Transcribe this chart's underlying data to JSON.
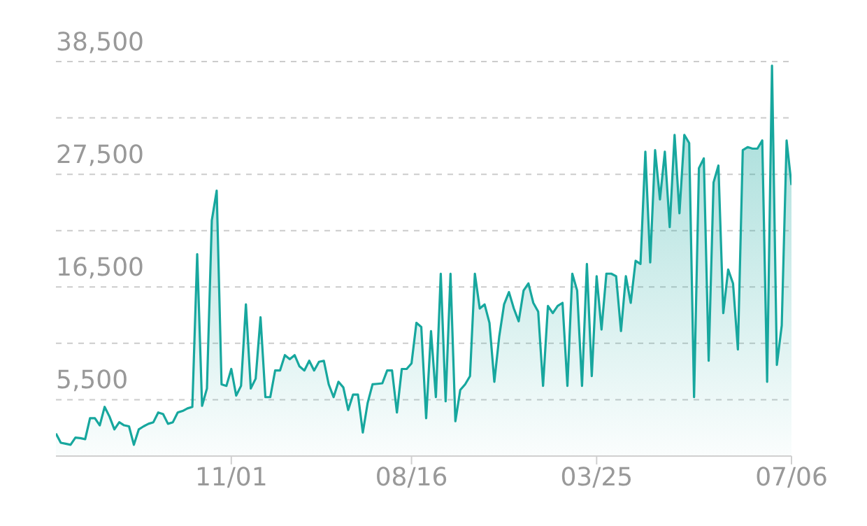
{
  "chart_data": {
    "type": "area",
    "categories": [
      null,
      null,
      null,
      null,
      null,
      null,
      null,
      null,
      null,
      null,
      null,
      null,
      null,
      null,
      null,
      null,
      null,
      null,
      null,
      null,
      null,
      null,
      null,
      null,
      null,
      null,
      null,
      null,
      null,
      null,
      null,
      null,
      null,
      null,
      null,
      null,
      "11/01",
      null,
      null,
      null,
      null,
      null,
      null,
      null,
      null,
      null,
      null,
      null,
      null,
      null,
      null,
      null,
      null,
      null,
      null,
      null,
      null,
      null,
      null,
      null,
      null,
      null,
      null,
      null,
      null,
      null,
      null,
      null,
      null,
      null,
      null,
      null,
      null,
      "08/16",
      null,
      null,
      null,
      null,
      null,
      null,
      null,
      null,
      null,
      null,
      null,
      null,
      null,
      null,
      null,
      null,
      null,
      null,
      null,
      null,
      null,
      null,
      null,
      null,
      null,
      null,
      null,
      null,
      null,
      null,
      null,
      null,
      null,
      null,
      null,
      null,
      null,
      "03/25",
      null,
      null,
      null,
      null,
      null,
      null,
      null,
      null,
      null,
      null,
      null,
      null,
      null,
      null,
      null,
      null,
      null,
      null,
      null,
      null,
      null,
      null,
      null,
      null,
      null,
      null,
      null,
      null,
      null,
      null,
      null,
      null,
      null,
      null,
      null,
      null,
      null,
      null,
      null,
      "07/06"
    ],
    "series": [
      {
        "color": "#17a79e",
        "values": [
          2200,
          1300,
          1200,
          1100,
          1800,
          1750,
          1650,
          3700,
          3700,
          3000,
          4800,
          3850,
          2600,
          3300,
          3000,
          2900,
          1100,
          2600,
          2900,
          3150,
          3300,
          4250,
          4100,
          3150,
          3300,
          4250,
          4400,
          4650,
          4800,
          19700,
          4900,
          6600,
          23000,
          25900,
          7000,
          6850,
          8500,
          5900,
          6850,
          14800,
          6600,
          7550,
          13550,
          5750,
          5750,
          8350,
          8350,
          9850,
          9450,
          9850,
          8750,
          8350,
          9300,
          8350,
          9200,
          9300,
          7000,
          5750,
          7250,
          6700,
          4500,
          6000,
          6000,
          2300,
          5200,
          7000,
          7050,
          7100,
          8350,
          8350,
          4250,
          8500,
          8500,
          9050,
          13000,
          12600,
          3700,
          12200,
          5750,
          17800,
          5350,
          17800,
          3400,
          6450,
          7000,
          7800,
          17800,
          14400,
          14800,
          13000,
          7250,
          11650,
          14800,
          16000,
          14400,
          13150,
          16150,
          16850,
          14950,
          14100,
          6850,
          14650,
          13950,
          14650,
          14950,
          6850,
          17800,
          16150,
          6850,
          18750,
          7800,
          17550,
          12350,
          17800,
          17800,
          17550,
          12200,
          17550,
          14950,
          19050,
          18750,
          29700,
          18900,
          29850,
          25050,
          29700,
          22350,
          31350,
          23700,
          31350,
          30550,
          5750,
          28100,
          29050,
          9300,
          26700,
          28350,
          13950,
          18200,
          16850,
          10400,
          29850,
          30150,
          30000,
          30000,
          30800,
          7250,
          38100,
          8900,
          12750,
          30800,
          26450
        ]
      }
    ],
    "ylim": [
      0,
      38500
    ],
    "yticks": [
      {
        "value": 5500,
        "label": "5,500"
      },
      {
        "value": 11000,
        "label": null
      },
      {
        "value": 16500,
        "label": "16,500"
      },
      {
        "value": 22000,
        "label": null
      },
      {
        "value": 27500,
        "label": "27,500"
      },
      {
        "value": 33000,
        "label": null
      },
      {
        "value": 38500,
        "label": "38,500"
      }
    ],
    "grid": "y"
  }
}
